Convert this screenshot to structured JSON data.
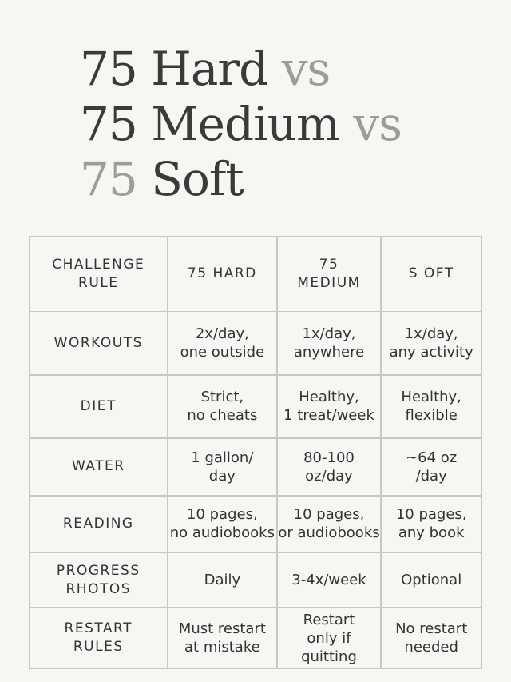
{
  "title": {
    "lines": [
      [
        {
          "text": "75 Hard",
          "color": "#3a3a3a"
        },
        {
          "text": "vs",
          "color": "#9c9c9c"
        }
      ],
      [
        {
          "text": "75 Medium",
          "color": "#3a3a3a"
        },
        {
          "text": "vs",
          "color": "#9c9c9c"
        }
      ],
      [
        {
          "text": "75",
          "color": "#9c9c9c"
        },
        {
          "text": "Soft",
          "color": "#3a3a3a"
        }
      ]
    ]
  },
  "table": {
    "header": [
      [
        "CHALLENGE",
        "RULE"
      ],
      [
        "75 HARD"
      ],
      [
        "75",
        "MEDIUM"
      ],
      [
        "S OFT"
      ]
    ],
    "rows": [
      [
        [
          "WORKOUTS"
        ],
        [
          "2x/day,",
          "one outside"
        ],
        [
          "1x/day,",
          "anywhere"
        ],
        [
          "1x/day,",
          "any activity"
        ]
      ],
      [
        [
          "DIET"
        ],
        [
          "Strict,",
          "no cheats"
        ],
        [
          "Healthy,",
          "1 treat/week"
        ],
        [
          "Healthy,",
          "flexible"
        ]
      ],
      [
        [
          "WATER"
        ],
        [
          "1 gallon/",
          "day"
        ],
        [
          "80-100",
          "oz/day"
        ],
        [
          "~64 oz",
          "/day"
        ]
      ],
      [
        [
          "READING"
        ],
        [
          "10 pages,",
          "no audiobooks"
        ],
        [
          "10 pages,",
          "or audiobooks"
        ],
        [
          "10 pages,",
          "any book"
        ]
      ],
      [
        [
          "PROGRESS",
          "RHOTOS"
        ],
        [
          "Daily"
        ],
        [
          "3-4x/week"
        ],
        [
          "Optional"
        ]
      ],
      [
        [
          "RESTART",
          "RULES"
        ],
        [
          "Must restart",
          "at mistake"
        ],
        [
          "Restart",
          "only if quitting"
        ],
        [
          "No restart",
          "needed"
        ]
      ]
    ]
  }
}
